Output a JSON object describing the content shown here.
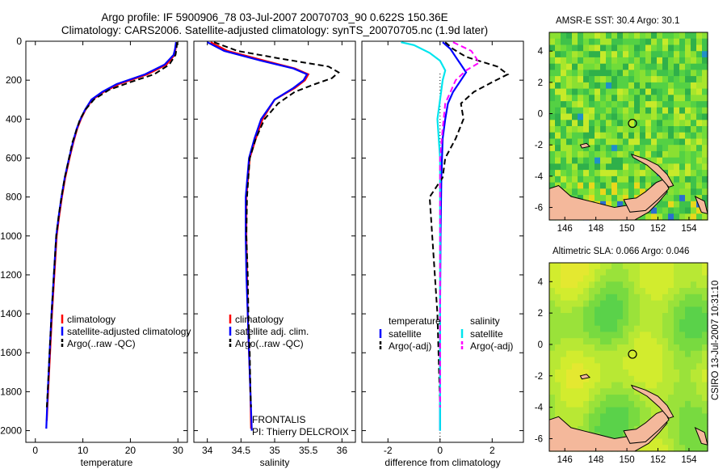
{
  "header": {
    "line1": "Argo profile: IF 5900906_78 03-Jul-2007 20070703_90 0.622S 150.36E",
    "line2": "Climatology: CARS2006. Satellite-adjusted climatology: synTS_20070705.nc (1.9d later)"
  },
  "colors": {
    "clim": "#ff0000",
    "sat": "#0000ff",
    "argo": "#000000",
    "sat_diff": "#00e5ee",
    "argo_adj": "#ff00ff",
    "land": "#f4b89b"
  },
  "chart_data": [
    {
      "type": "line",
      "xlabel": "temperature",
      "ylabel": "",
      "xlim": [
        -2,
        32
      ],
      "ylim": [
        2060,
        0
      ],
      "xticks": [
        0,
        10,
        20,
        30
      ],
      "yticks": [
        0,
        200,
        400,
        600,
        800,
        1000,
        1200,
        1400,
        1600,
        1800,
        2000
      ],
      "legend": [
        "climatology",
        "satellite-adjusted climatology",
        "Argo(..raw -QC)"
      ],
      "series": [
        {
          "name": "climatology",
          "style": "solid",
          "color": "clim",
          "points": [
            [
              29.7,
              5
            ],
            [
              29.5,
              40
            ],
            [
              29.3,
              70
            ],
            [
              27.6,
              120
            ],
            [
              23.6,
              170
            ],
            [
              17.6,
              220
            ],
            [
              14.4,
              260
            ],
            [
              12.0,
              300
            ],
            [
              10.6,
              350
            ],
            [
              9.6,
              400
            ],
            [
              8.8,
              450
            ],
            [
              8.0,
              520
            ],
            [
              7.2,
              600
            ],
            [
              6.3,
              700
            ],
            [
              5.6,
              800
            ],
            [
              5.0,
              900
            ],
            [
              4.5,
              1000
            ],
            [
              4.0,
              1200
            ],
            [
              3.5,
              1400
            ],
            [
              3.1,
              1600
            ],
            [
              2.7,
              1800
            ],
            [
              2.4,
              1950
            ]
          ]
        },
        {
          "name": "satellite-adjusted climatology",
          "style": "solid",
          "color": "sat",
          "points": [
            [
              29.6,
              5
            ],
            [
              29.4,
              40
            ],
            [
              29.1,
              70
            ],
            [
              27.2,
              120
            ],
            [
              23.1,
              170
            ],
            [
              17.1,
              220
            ],
            [
              14.1,
              260
            ],
            [
              11.8,
              300
            ],
            [
              10.5,
              350
            ],
            [
              9.5,
              400
            ],
            [
              8.7,
              450
            ],
            [
              7.9,
              520
            ],
            [
              7.1,
              600
            ],
            [
              6.2,
              700
            ],
            [
              5.5,
              800
            ],
            [
              4.9,
              900
            ],
            [
              4.4,
              1000
            ],
            [
              3.9,
              1200
            ],
            [
              3.4,
              1400
            ],
            [
              3.0,
              1600
            ],
            [
              2.6,
              1800
            ],
            [
              2.3,
              1990
            ]
          ]
        },
        {
          "name": "Argo(..raw -QC)",
          "style": "dash",
          "color": "argo",
          "points": [
            [
              29.8,
              5
            ],
            [
              29.7,
              40
            ],
            [
              29.5,
              70
            ],
            [
              28.2,
              120
            ],
            [
              25.0,
              170
            ],
            [
              20.0,
              210
            ],
            [
              15.5,
              250
            ],
            [
              12.3,
              300
            ],
            [
              10.6,
              350
            ],
            [
              9.4,
              400
            ],
            [
              8.6,
              460
            ],
            [
              7.8,
              520
            ],
            [
              7.1,
              600
            ],
            [
              6.2,
              700
            ],
            [
              5.5,
              800
            ],
            [
              4.9,
              900
            ],
            [
              4.4,
              1000
            ],
            [
              3.9,
              1200
            ],
            [
              3.4,
              1400
            ],
            [
              3.0,
              1600
            ],
            [
              2.6,
              1800
            ],
            [
              2.4,
              1880
            ]
          ]
        }
      ]
    },
    {
      "type": "line",
      "xlabel": "salinity",
      "ylabel": "",
      "xlim": [
        33.8,
        36.2
      ],
      "ylim": [
        2060,
        0
      ],
      "xticks": [
        34,
        34.5,
        35,
        35.5,
        36
      ],
      "yticks": [],
      "legend": [
        "climatology",
        "satellite adj. clim.",
        "Argo(..raw -QC)"
      ],
      "annotation": [
        "FRONTALIS",
        "PI: Thierry DELCROIX"
      ],
      "series": [
        {
          "name": "climatology",
          "style": "solid",
          "color": "clim",
          "points": [
            [
              34.05,
              5
            ],
            [
              34.3,
              50
            ],
            [
              34.85,
              100
            ],
            [
              35.3,
              140
            ],
            [
              35.5,
              170
            ],
            [
              35.45,
              200
            ],
            [
              35.3,
              240
            ],
            [
              35.0,
              300
            ],
            [
              34.82,
              400
            ],
            [
              34.72,
              500
            ],
            [
              34.63,
              600
            ],
            [
              34.58,
              800
            ],
            [
              34.58,
              1000
            ],
            [
              34.59,
              1200
            ],
            [
              34.6,
              1400
            ],
            [
              34.62,
              1600
            ],
            [
              34.64,
              1800
            ],
            [
              34.65,
              1990
            ]
          ]
        },
        {
          "name": "satellite adj. clim.",
          "style": "solid",
          "color": "sat",
          "points": [
            [
              34.0,
              5
            ],
            [
              34.25,
              50
            ],
            [
              34.8,
              100
            ],
            [
              35.28,
              140
            ],
            [
              35.48,
              170
            ],
            [
              35.43,
              200
            ],
            [
              35.28,
              240
            ],
            [
              35.0,
              300
            ],
            [
              34.8,
              400
            ],
            [
              34.7,
              500
            ],
            [
              34.62,
              600
            ],
            [
              34.57,
              800
            ],
            [
              34.57,
              1000
            ],
            [
              34.58,
              1200
            ],
            [
              34.6,
              1400
            ],
            [
              34.62,
              1600
            ],
            [
              34.64,
              1800
            ],
            [
              34.66,
              2000
            ]
          ]
        },
        {
          "name": "Argo(..raw -QC)",
          "style": "dash",
          "color": "argo",
          "points": [
            [
              34.1,
              5
            ],
            [
              34.45,
              50
            ],
            [
              35.1,
              90
            ],
            [
              35.8,
              130
            ],
            [
              35.95,
              160
            ],
            [
              35.85,
              190
            ],
            [
              35.6,
              220
            ],
            [
              35.3,
              260
            ],
            [
              35.05,
              320
            ],
            [
              34.85,
              400
            ],
            [
              34.72,
              500
            ],
            [
              34.63,
              600
            ],
            [
              34.59,
              800
            ],
            [
              34.58,
              1000
            ],
            [
              34.6,
              1200
            ],
            [
              34.61,
              1400
            ],
            [
              34.63,
              1600
            ],
            [
              34.64,
              1800
            ],
            [
              34.65,
              1880
            ]
          ]
        }
      ]
    },
    {
      "type": "line",
      "xlabel": "difference from climatology",
      "ylabel": "",
      "xlim": [
        -3,
        3.2
      ],
      "ylim": [
        2060,
        0
      ],
      "xticks": [
        -2,
        0,
        2
      ],
      "yticks": [],
      "legend_groups": [
        {
          "title": "temperature",
          "items": [
            {
              "label": "satellite",
              "color": "sat",
              "style": "solid"
            },
            {
              "label": "Argo(-adj)",
              "color": "argo",
              "style": "dash"
            }
          ]
        },
        {
          "title": "salinity",
          "items": [
            {
              "label": "satellite",
              "color": "sat_diff",
              "style": "solid"
            },
            {
              "label": "Argo(-adj)",
              "color": "argo_adj",
              "style": "dash"
            }
          ]
        }
      ],
      "series": [
        {
          "name": "satellite",
          "group": "temperature",
          "style": "solid",
          "color": "sat",
          "points": [
            [
              0.1,
              5
            ],
            [
              0.4,
              40
            ],
            [
              0.6,
              80
            ],
            [
              0.8,
              120
            ],
            [
              1.0,
              160
            ],
            [
              0.8,
              200
            ],
            [
              0.5,
              260
            ],
            [
              0.3,
              320
            ],
            [
              0.2,
              400
            ],
            [
              0.1,
              500
            ],
            [
              0.05,
              700
            ],
            [
              0.02,
              1000
            ],
            [
              0.0,
              1400
            ],
            [
              0.0,
              2000
            ]
          ]
        },
        {
          "name": "Argo(-adj)",
          "group": "temperature",
          "style": "dash",
          "color": "argo",
          "points": [
            [
              0.2,
              5
            ],
            [
              0.5,
              40
            ],
            [
              1.0,
              80
            ],
            [
              2.2,
              130
            ],
            [
              2.6,
              170
            ],
            [
              2.0,
              210
            ],
            [
              1.3,
              260
            ],
            [
              0.8,
              320
            ],
            [
              0.9,
              400
            ],
            [
              0.6,
              500
            ],
            [
              0.2,
              600
            ],
            [
              0.1,
              700
            ],
            [
              -0.4,
              800
            ],
            [
              -0.3,
              1000
            ],
            [
              -0.2,
              1200
            ],
            [
              -0.1,
              1400
            ],
            [
              0.0,
              1880
            ]
          ]
        },
        {
          "name": "satellite",
          "group": "salinity",
          "style": "solid",
          "color": "sat_diff",
          "points": [
            [
              -1.5,
              5
            ],
            [
              -1.0,
              20
            ],
            [
              -0.4,
              60
            ],
            [
              0.0,
              100
            ],
            [
              0.2,
              150
            ],
            [
              0.1,
              200
            ],
            [
              0.0,
              300
            ],
            [
              -0.1,
              400
            ],
            [
              0.0,
              600
            ],
            [
              0.0,
              1000
            ],
            [
              0.0,
              1400
            ],
            [
              0.0,
              2000
            ]
          ]
        },
        {
          "name": "Argo(-adj)",
          "group": "salinity",
          "style": "dash",
          "color": "argo_adj",
          "points": [
            [
              0.5,
              5
            ],
            [
              1.2,
              50
            ],
            [
              1.5,
              110
            ],
            [
              1.0,
              150
            ],
            [
              0.6,
              200
            ],
            [
              0.4,
              260
            ],
            [
              0.2,
              320
            ],
            [
              0.1,
              450
            ],
            [
              0.0,
              600
            ],
            [
              0.0,
              800
            ],
            [
              0.0,
              1000
            ],
            [
              0.0,
              1200
            ],
            [
              0.0,
              1880
            ]
          ]
        }
      ]
    },
    {
      "type": "heatmap",
      "title": "AMSR-E SST: 30.4  Argo: 30.1",
      "xlim": [
        145,
        155.2
      ],
      "ylim": [
        -6.8,
        5.2
      ],
      "xticks": [
        146,
        148,
        150,
        152,
        154
      ],
      "yticks": [
        -6,
        -4,
        -2,
        0,
        2,
        4
      ],
      "marker": {
        "lon": 150.36,
        "lat": -0.622
      }
    },
    {
      "type": "heatmap",
      "title": "Altimetric SLA: 0.066  Argo: 0.046",
      "xlim": [
        145,
        155.2
      ],
      "ylim": [
        -6.8,
        5.2
      ],
      "xticks": [
        146,
        148,
        150,
        152,
        154
      ],
      "yticks": [
        -6,
        -4,
        -2,
        0,
        2,
        4
      ],
      "marker": {
        "lon": 150.36,
        "lat": -0.622
      }
    }
  ],
  "timestamp": "CSIRO 13-Jul-2007 10:31:10"
}
